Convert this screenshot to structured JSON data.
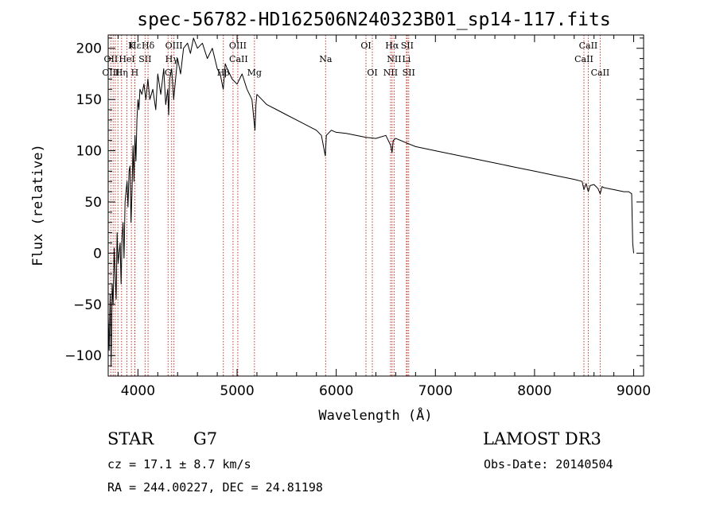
{
  "chart_data": {
    "type": "line",
    "title": "spec-56782-HD162506N240323B01_sp14-117.fits",
    "xlabel": "Wavelength (Å)",
    "ylabel": "Flux (relative)",
    "xlim": [
      3700,
      9100
    ],
    "ylim": [
      -120,
      213
    ],
    "xticks": [
      4000,
      5000,
      6000,
      7000,
      8000,
      9000
    ],
    "yticks": [
      -100,
      -50,
      0,
      50,
      100,
      150,
      200
    ],
    "grid": false,
    "series": [
      {
        "name": "spectrum",
        "x": [
          3700,
          3710,
          3720,
          3730,
          3740,
          3750,
          3760,
          3770,
          3780,
          3790,
          3800,
          3810,
          3820,
          3830,
          3840,
          3850,
          3860,
          3870,
          3880,
          3890,
          3900,
          3910,
          3920,
          3930,
          3940,
          3950,
          3960,
          3970,
          3980,
          3990,
          4000,
          4010,
          4020,
          4040,
          4060,
          4080,
          4100,
          4120,
          4150,
          4180,
          4200,
          4230,
          4260,
          4280,
          4300,
          4310,
          4320,
          4340,
          4360,
          4380,
          4400,
          4430,
          4460,
          4500,
          4530,
          4560,
          4600,
          4650,
          4700,
          4750,
          4800,
          4830,
          4860,
          4880,
          4900,
          4950,
          5000,
          5050,
          5100,
          5150,
          5170,
          5180,
          5190,
          5200,
          5250,
          5300,
          5400,
          5500,
          5600,
          5700,
          5800,
          5850,
          5890,
          5895,
          5900,
          5950,
          6000,
          6100,
          6200,
          6300,
          6400,
          6500,
          6550,
          6563,
          6575,
          6600,
          6700,
          6800,
          7000,
          7200,
          7400,
          7600,
          7800,
          8000,
          8200,
          8400,
          8480,
          8498,
          8520,
          8542,
          8560,
          8600,
          8640,
          8662,
          8680,
          8700,
          8800,
          8900,
          8950,
          8980,
          8990,
          9000
        ],
        "values": [
          -60,
          -95,
          -40,
          -110,
          -30,
          -50,
          5,
          -20,
          -45,
          20,
          -10,
          0,
          10,
          -30,
          15,
          30,
          -5,
          50,
          60,
          70,
          45,
          80,
          85,
          30,
          60,
          105,
          70,
          115,
          90,
          130,
          150,
          140,
          160,
          155,
          165,
          150,
          170,
          150,
          160,
          140,
          175,
          155,
          180,
          145,
          160,
          135,
          170,
          180,
          150,
          170,
          190,
          175,
          200,
          205,
          195,
          210,
          200,
          205,
          190,
          200,
          180,
          175,
          160,
          185,
          180,
          170,
          165,
          175,
          160,
          150,
          130,
          120,
          145,
          155,
          150,
          145,
          140,
          135,
          130,
          125,
          120,
          115,
          95,
          105,
          115,
          120,
          118,
          117,
          115,
          113,
          112,
          115,
          105,
          98,
          110,
          112,
          108,
          104,
          100,
          96,
          92,
          88,
          84,
          80,
          76,
          72,
          70,
          62,
          68,
          60,
          66,
          67,
          63,
          58,
          65,
          64,
          62,
          60,
          60,
          58,
          10,
          0
        ]
      }
    ],
    "spectral_lines": [
      {
        "label": "Hε",
        "wavelength": 3970,
        "row": 1
      },
      {
        "label": "K",
        "wavelength": 3934,
        "row": 1
      },
      {
        "label": "Hδ",
        "wavelength": 4102,
        "row": 1
      },
      {
        "label": "OIII",
        "wavelength": 4363,
        "row": 1
      },
      {
        "label": "OIII",
        "wavelength": 5007,
        "row": 1
      },
      {
        "label": "OI",
        "wavelength": 6300,
        "row": 1
      },
      {
        "label": "Hα",
        "wavelength": 6563,
        "row": 1
      },
      {
        "label": "SII",
        "wavelength": 6716,
        "row": 1
      },
      {
        "label": "CaII",
        "wavelength": 8542,
        "row": 1
      },
      {
        "label": "OII",
        "wavelength": 3727,
        "row": 2
      },
      {
        "label": "HeI",
        "wavelength": 3889,
        "row": 2
      },
      {
        "label": "SII",
        "wavelength": 4072,
        "row": 2
      },
      {
        "label": "Hγ",
        "wavelength": 4340,
        "row": 2
      },
      {
        "label": "CaII",
        "wavelength": 5015,
        "row": 2
      },
      {
        "label": "Na",
        "wavelength": 5893,
        "row": 2
      },
      {
        "label": "NII",
        "wavelength": 6584,
        "row": 2
      },
      {
        "label": "Li",
        "wavelength": 6708,
        "row": 2
      },
      {
        "label": "CaII",
        "wavelength": 8498,
        "row": 2
      },
      {
        "label": "OIII",
        "wavelength": 3727,
        "row": 3
      },
      {
        "label": "Hη",
        "wavelength": 3835,
        "row": 3
      },
      {
        "label": "H",
        "wavelength": 3968,
        "row": 3
      },
      {
        "label": "G",
        "wavelength": 4304,
        "row": 3
      },
      {
        "label": "Hβ",
        "wavelength": 4861,
        "row": 3
      },
      {
        "label": "Mg",
        "wavelength": 5175,
        "row": 3
      },
      {
        "label": "OI",
        "wavelength": 6364,
        "row": 3
      },
      {
        "label": "NII",
        "wavelength": 6548,
        "row": 3
      },
      {
        "label": "SII",
        "wavelength": 6731,
        "row": 3
      },
      {
        "label": "CaII",
        "wavelength": 8662,
        "row": 3
      }
    ],
    "line_markers": [
      3727,
      3750,
      3771,
      3798,
      3835,
      3889,
      3934,
      3968,
      3970,
      4072,
      4102,
      4304,
      4340,
      4363,
      4861,
      4959,
      5007,
      5175,
      5893,
      6300,
      6364,
      6548,
      6563,
      6584,
      6708,
      6716,
      6731,
      8498,
      8542,
      8662
    ]
  },
  "info": {
    "object_type": "STAR",
    "subclass": "G7",
    "survey": "LAMOST DR3",
    "redshift_text": "cz = 17.1 ± 8.7 km/s",
    "obs_date_text": "Obs-Date: 20140504",
    "coords_text": "RA = 244.00227, DEC =  24.81198"
  }
}
